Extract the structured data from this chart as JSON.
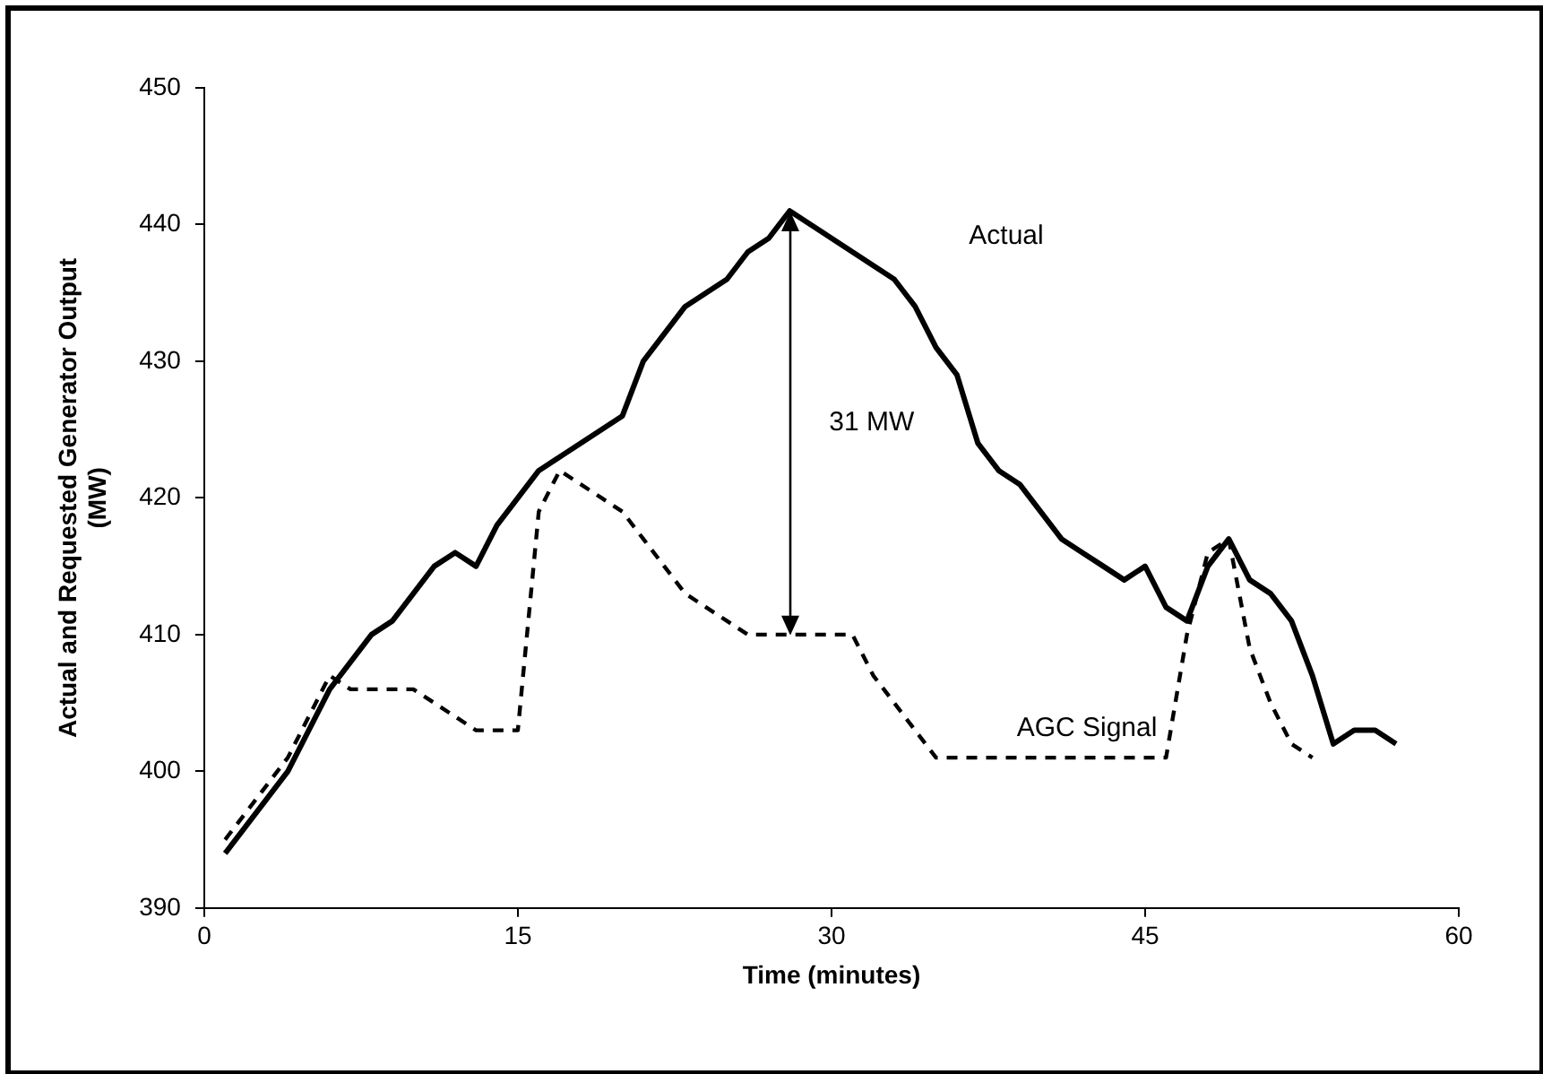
{
  "chart_data": {
    "type": "line",
    "xlabel": "Time (minutes)",
    "ylabel": "Actual and Requested Generator Output (MW)",
    "xlim": [
      0,
      60
    ],
    "xticks": [
      0,
      15,
      30,
      45,
      60
    ],
    "ylim": [
      390,
      450
    ],
    "yticks": [
      390,
      400,
      410,
      420,
      430,
      440,
      450
    ],
    "grid": false,
    "legend": false,
    "marker": "none",
    "x": [
      1,
      2,
      3,
      4,
      5,
      6,
      7,
      8,
      9,
      10,
      11,
      12,
      13,
      14,
      15,
      16,
      17,
      18,
      19,
      20,
      21,
      22,
      23,
      24,
      25,
      26,
      27,
      28,
      29,
      30,
      31,
      32,
      33,
      34,
      35,
      36,
      37,
      38,
      39,
      40,
      41,
      42,
      43,
      44,
      45,
      46,
      47,
      48,
      49,
      50,
      51,
      52,
      53,
      54,
      55,
      56,
      57
    ],
    "series": [
      {
        "name": "Actual",
        "color": "#000000",
        "line_style": "solid",
        "values": [
          394,
          396,
          398,
          400,
          403,
          406,
          408,
          410,
          411,
          413,
          415,
          416,
          415,
          418,
          420,
          422,
          423,
          424,
          425,
          426,
          430,
          432,
          434,
          435,
          436,
          438,
          439,
          441,
          440,
          439,
          438,
          437,
          436,
          434,
          431,
          429,
          424,
          422,
          421,
          419,
          417,
          416,
          415,
          414,
          415,
          412,
          411,
          415,
          417,
          414,
          413,
          411,
          407,
          402,
          403,
          403,
          402
        ]
      },
      {
        "name": "AGC Signal",
        "color": "#000000",
        "line_style": "dashed",
        "values": [
          395,
          397,
          399,
          401,
          404,
          407,
          406,
          406,
          406,
          406,
          405,
          404,
          403,
          403,
          403,
          419,
          422,
          421,
          420,
          419,
          417,
          415,
          413,
          412,
          411,
          410,
          410,
          410,
          410,
          410,
          410,
          407,
          405,
          403,
          401,
          401,
          401,
          401,
          401,
          401,
          401,
          401,
          401,
          401,
          401,
          401,
          410,
          416,
          417,
          409,
          405,
          402,
          401,
          null,
          null,
          null,
          null
        ]
      }
    ],
    "annotations": [
      "31 MW"
    ]
  }
}
